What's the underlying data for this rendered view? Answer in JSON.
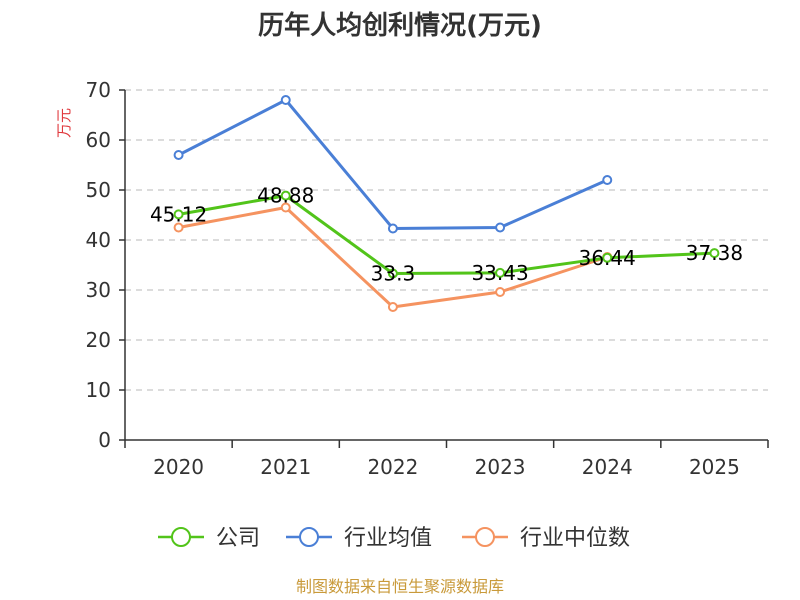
{
  "chart_data": {
    "type": "line",
    "title": "历年人均创利情况(万元)",
    "ylabel": "万元",
    "xlabel": "",
    "ylim": [
      0,
      70
    ],
    "yticks": [
      0,
      10,
      20,
      30,
      40,
      50,
      60,
      70
    ],
    "categories": [
      "2020",
      "2021",
      "2022",
      "2023",
      "2024",
      "2025"
    ],
    "series": [
      {
        "name": "公司",
        "color": "#52c41a",
        "values": [
          45.12,
          48.88,
          33.3,
          33.43,
          36.44,
          37.38
        ],
        "labels": [
          "45.12",
          "48.88",
          "33.3",
          "33.43",
          "36.44",
          "37.38"
        ]
      },
      {
        "name": "行业均值",
        "color": "#4a7fd6",
        "values": [
          57.0,
          68.0,
          42.3,
          42.5,
          52.0,
          null
        ]
      },
      {
        "name": "行业中位数",
        "color": "#f59360",
        "values": [
          42.5,
          46.5,
          26.6,
          29.6,
          36.6,
          null
        ]
      }
    ],
    "legend_position": "bottom",
    "grid": true
  },
  "source": "制图数据来自恒生聚源数据库"
}
